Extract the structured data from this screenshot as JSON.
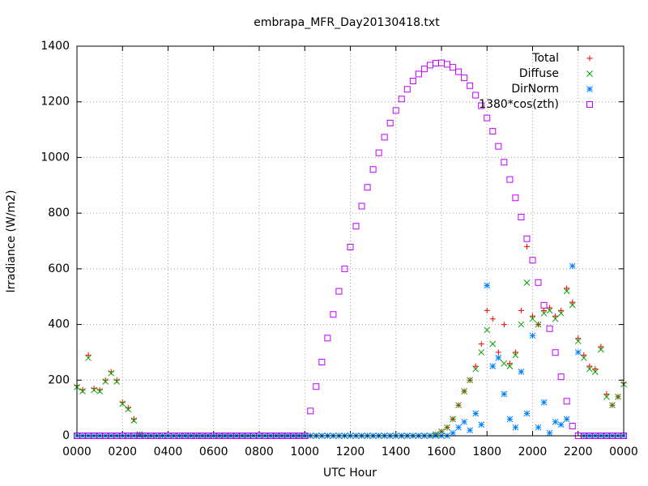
{
  "chart_data": {
    "type": "scatter",
    "title": "embrapa_MFR_Day20130418.txt",
    "x_label": "UTC Hour",
    "y_label": "Irradiance (W/m2)",
    "xlim": [
      0,
      24
    ],
    "ylim": [
      0,
      1400
    ],
    "xticks": [
      {
        "value": 0,
        "label": "0000"
      },
      {
        "value": 2,
        "label": "0200"
      },
      {
        "value": 4,
        "label": "0400"
      },
      {
        "value": 6,
        "label": "0600"
      },
      {
        "value": 8,
        "label": "0800"
      },
      {
        "value": 10,
        "label": "1000"
      },
      {
        "value": 12,
        "label": "1200"
      },
      {
        "value": 14,
        "label": "1400"
      },
      {
        "value": 16,
        "label": "1600"
      },
      {
        "value": 18,
        "label": "1800"
      },
      {
        "value": 20,
        "label": "2000"
      },
      {
        "value": 22,
        "label": "2200"
      },
      {
        "value": 24,
        "label": "0000"
      }
    ],
    "yticks": [
      0,
      200,
      400,
      600,
      800,
      1000,
      1200,
      1400
    ],
    "grid": true,
    "legend": "top-right",
    "x": [
      0,
      0.25,
      0.5,
      0.75,
      1,
      1.25,
      1.5,
      1.75,
      2,
      2.25,
      2.5,
      2.75,
      3,
      3.25,
      3.5,
      3.75,
      4,
      4.25,
      4.5,
      4.75,
      5,
      5.25,
      5.5,
      5.75,
      6,
      6.25,
      6.5,
      6.75,
      7,
      7.25,
      7.5,
      7.75,
      8,
      8.25,
      8.5,
      8.75,
      9,
      9.25,
      9.5,
      9.75,
      10,
      10.25,
      10.5,
      10.75,
      11,
      11.25,
      11.5,
      11.75,
      12,
      12.25,
      12.5,
      12.75,
      13,
      13.25,
      13.5,
      13.75,
      14,
      14.25,
      14.5,
      14.75,
      15,
      15.25,
      15.5,
      15.75,
      16,
      16.25,
      16.5,
      16.75,
      17,
      17.25,
      17.5,
      17.75,
      18,
      18.25,
      18.5,
      18.75,
      19,
      19.25,
      19.5,
      19.75,
      20,
      20.25,
      20.5,
      20.75,
      21,
      21.25,
      21.5,
      21.75,
      22,
      22.25,
      22.5,
      22.75,
      23,
      23.25,
      23.5,
      23.75,
      24
    ],
    "series": [
      {
        "name": "Total",
        "color": "#ff0000",
        "marker": "plus",
        "values": [
          180,
          165,
          290,
          170,
          165,
          200,
          230,
          200,
          120,
          100,
          60,
          5,
          0,
          0,
          0,
          0,
          0,
          0,
          0,
          0,
          0,
          0,
          0,
          0,
          0,
          0,
          0,
          0,
          0,
          0,
          0,
          0,
          0,
          0,
          0,
          0,
          0,
          0,
          0,
          0,
          0,
          0,
          0,
          0,
          0,
          0,
          0,
          0,
          0,
          0,
          0,
          0,
          0,
          0,
          0,
          0,
          0,
          0,
          0,
          0,
          0,
          0,
          0,
          5,
          15,
          30,
          60,
          110,
          160,
          200,
          250,
          330,
          450,
          420,
          300,
          400,
          260,
          300,
          450,
          680,
          430,
          400,
          450,
          460,
          430,
          450,
          530,
          480,
          350,
          290,
          250,
          240,
          320,
          150,
          110,
          140,
          190
        ]
      },
      {
        "name": "Diffuse",
        "color": "#00a000",
        "marker": "cross",
        "values": [
          175,
          160,
          280,
          165,
          160,
          195,
          225,
          195,
          115,
          95,
          55,
          5,
          0,
          0,
          0,
          0,
          0,
          0,
          0,
          0,
          0,
          0,
          0,
          0,
          0,
          0,
          0,
          0,
          0,
          0,
          0,
          0,
          0,
          0,
          0,
          0,
          0,
          0,
          0,
          0,
          0,
          0,
          0,
          0,
          0,
          0,
          0,
          0,
          0,
          0,
          0,
          0,
          0,
          0,
          0,
          0,
          0,
          0,
          0,
          0,
          0,
          0,
          0,
          5,
          15,
          30,
          60,
          110,
          160,
          200,
          240,
          300,
          380,
          330,
          280,
          260,
          250,
          290,
          400,
          550,
          420,
          400,
          440,
          450,
          420,
          440,
          520,
          470,
          340,
          280,
          240,
          230,
          310,
          140,
          110,
          140,
          185
        ]
      },
      {
        "name": "DirNorm",
        "color": "#0080ff",
        "marker": "star",
        "values": [
          0,
          0,
          0,
          0,
          0,
          0,
          0,
          0,
          0,
          0,
          0,
          0,
          0,
          0,
          0,
          0,
          0,
          0,
          0,
          0,
          0,
          0,
          0,
          0,
          0,
          0,
          0,
          0,
          0,
          0,
          0,
          0,
          0,
          0,
          0,
          0,
          0,
          0,
          0,
          0,
          0,
          0,
          0,
          0,
          0,
          0,
          0,
          0,
          0,
          0,
          0,
          0,
          0,
          0,
          0,
          0,
          0,
          0,
          0,
          0,
          0,
          0,
          0,
          0,
          0,
          0,
          10,
          30,
          50,
          20,
          80,
          40,
          540,
          250,
          280,
          150,
          60,
          30,
          230,
          80,
          360,
          30,
          120,
          10,
          50,
          40,
          60,
          610,
          300,
          0,
          0,
          0,
          0,
          0,
          0,
          0,
          0
        ]
      },
      {
        "name": "1380*cos(zth)",
        "color": "#c000ff",
        "marker": "square",
        "values": [
          0,
          0,
          0,
          0,
          0,
          0,
          0,
          0,
          0,
          0,
          0,
          0,
          0,
          0,
          0,
          0,
          0,
          0,
          0,
          0,
          0,
          0,
          0,
          0,
          0,
          0,
          0,
          0,
          0,
          0,
          0,
          0,
          0,
          0,
          0,
          0,
          0,
          0,
          0,
          0,
          0,
          89,
          177,
          265,
          351,
          436,
          519,
          600,
          678,
          753,
          825,
          893,
          957,
          1017,
          1073,
          1124,
          1169,
          1210,
          1245,
          1275,
          1300,
          1318,
          1332,
          1339,
          1340,
          1335,
          1324,
          1308,
          1286,
          1258,
          1224,
          1186,
          1142,
          1094,
          1040,
          983,
          921,
          855,
          786,
          708,
          631,
          551,
          469,
          385,
          299,
          212,
          124,
          35,
          0,
          0,
          0,
          0,
          0,
          0,
          0,
          0,
          0
        ]
      }
    ]
  }
}
